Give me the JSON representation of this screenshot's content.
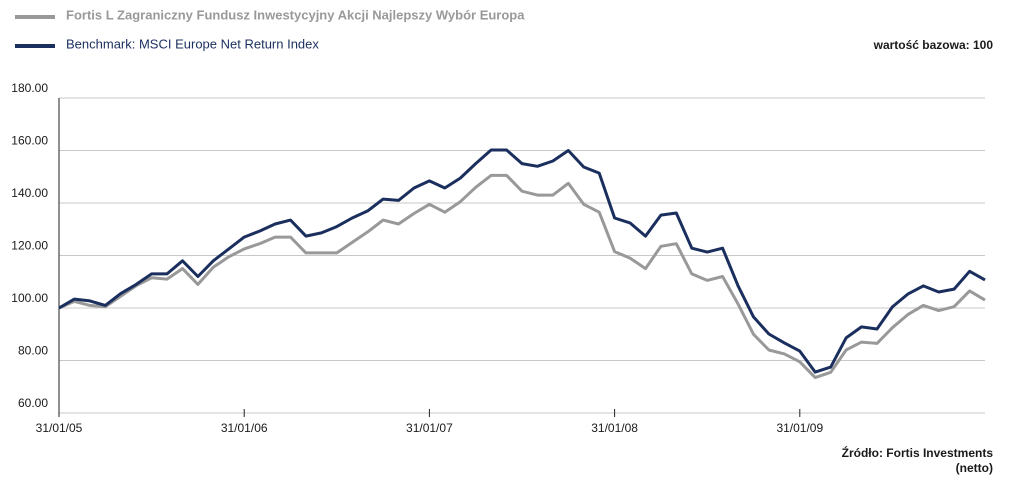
{
  "chart_data": {
    "type": "line",
    "note": "wartość bazowa: 100",
    "source": [
      "Źródło: Fortis Investments",
      "(netto)"
    ],
    "categories": [
      "31/01/05",
      null,
      null,
      null,
      null,
      null,
      null,
      null,
      null,
      null,
      null,
      null,
      "31/01/06",
      null,
      null,
      null,
      null,
      null,
      null,
      null,
      null,
      null,
      null,
      null,
      "31/01/07",
      null,
      null,
      null,
      null,
      null,
      null,
      null,
      null,
      null,
      null,
      null,
      "31/01/08",
      null,
      null,
      null,
      null,
      null,
      null,
      null,
      null,
      null,
      null,
      null,
      "31/01/09",
      null,
      null,
      null,
      null,
      null,
      null,
      null,
      null,
      null,
      null,
      null,
      null
    ],
    "series": [
      {
        "name": "Fortis L Zagraniczny Fundusz Inwestycyjny Akcji Najlepszy Wybór Europa",
        "color": "#999999",
        "values": [
          100,
          102.5,
          101,
          100.5,
          104.5,
          108.5,
          111.5,
          111,
          115,
          109,
          115.5,
          119.5,
          122.5,
          124.5,
          127,
          127,
          121,
          121,
          121,
          125,
          129,
          133.5,
          132,
          136,
          139.5,
          136.5,
          140.5,
          146,
          150.5,
          150.5,
          144.5,
          143,
          143,
          147.5,
          139.5,
          136.5,
          121.5,
          119,
          115,
          123.5,
          124.5,
          113,
          110.5,
          112,
          101.5,
          90,
          84,
          82.5,
          79.5,
          73.5,
          75.5,
          84,
          87,
          86.5,
          92.5,
          97.5,
          101,
          99,
          100.5,
          106.5,
          103
        ]
      },
      {
        "name": "Benchmark: MSCI Europe Net Return Index",
        "color": "#1b2f5e",
        "values": [
          100,
          103.4,
          102.7,
          101,
          105.5,
          109,
          113,
          113,
          118,
          112,
          118,
          122.5,
          127,
          129.3,
          132,
          133.5,
          127.4,
          128.6,
          131,
          134.3,
          137,
          141.5,
          141,
          145.7,
          148.4,
          145.7,
          149.5,
          155,
          160.2,
          160.2,
          155,
          154,
          156,
          160,
          153.7,
          151.4,
          134.3,
          132.4,
          127.4,
          135.4,
          136.2,
          122.8,
          121.3,
          122.8,
          108.4,
          96.6,
          90.1,
          86.7,
          83.6,
          75.6,
          77.5,
          88.6,
          92.8,
          92,
          100.4,
          105.3,
          108.4,
          106.1,
          107.2,
          114,
          110.7
        ]
      }
    ],
    "ylim": [
      60,
      180
    ],
    "yticks": [
      {
        "value": 60,
        "label": "60.00"
      },
      {
        "value": 80,
        "label": "80.00"
      },
      {
        "value": 100,
        "label": "100.00"
      },
      {
        "value": 120,
        "label": "120.00"
      },
      {
        "value": 140,
        "label": "140.00"
      },
      {
        "value": 160,
        "label": "160.00"
      },
      {
        "value": 180,
        "label": "180.00"
      }
    ],
    "grid": true
  }
}
